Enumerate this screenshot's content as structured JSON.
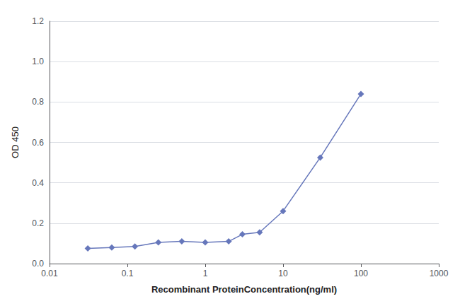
{
  "chart_data": {
    "type": "line",
    "x_label": "Recombinant ProteinConcentration(ng/ml)",
    "y_label": "OD 450",
    "x": [
      0.031,
      0.063,
      0.125,
      0.25,
      0.5,
      1.0,
      2.0,
      3.0,
      5.0,
      10.0,
      30.0,
      100.0
    ],
    "values": [
      0.075,
      0.08,
      0.085,
      0.105,
      0.11,
      0.105,
      0.11,
      0.145,
      0.155,
      0.26,
      0.525,
      0.84
    ],
    "color": "#6677bb",
    "marker": "diamond",
    "log": "x",
    "xlim": [
      0.01,
      1000
    ],
    "xticks": [
      0.01,
      0.1,
      1,
      10,
      100,
      1000
    ],
    "ylim": [
      0,
      1.2
    ],
    "yticks": [
      {
        "value": 0,
        "label": "0.0"
      },
      0.2,
      0.4,
      0.6,
      0.8,
      {
        "value": 1.0,
        "label": "1.0"
      },
      1.2
    ],
    "grid": "y"
  }
}
